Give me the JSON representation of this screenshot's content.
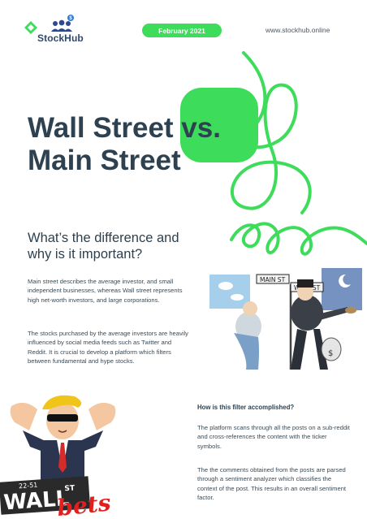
{
  "brand": {
    "name": "StockHub"
  },
  "header": {
    "date": "February 2021",
    "website": "www.stockhub.online"
  },
  "title": {
    "line1": "Wall Street vs.",
    "line2": "Main Street"
  },
  "subtitle": "What’s the difference and why is it important?",
  "body": {
    "paragraph1": "Main street describes the average investor, and small independent businesses, whereas Wall street represents high net-worth investors, and large corporations.",
    "paragraph2": "The stocks purchased by the average investors are heavily influenced by social media feeds such as Twitter and Reddit. It is crucial to develop a platform which filters between fundamental and hype stocks."
  },
  "cartoon": {
    "sign_main": "MAIN ST",
    "sign_wall": "WALL ST"
  },
  "wsb_logo": {
    "sign": "WALL",
    "sign_suffix": "ST",
    "sign_number": "22-51",
    "script": "bets"
  },
  "filter_section": {
    "heading": "How is this filter accomplished?",
    "paragraph1": "The platform scans through all the posts on a sub-reddit and cross-references the content with the ticker symbols.",
    "paragraph2": "The the comments obtained from the posts are parsed through a sentiment analyzer which classifies the context of the post. This results in an overall sentiment factor."
  },
  "colors": {
    "accent": "#3ddc5a",
    "title": "#2d4150",
    "logo_text": "#2e4a6b"
  }
}
